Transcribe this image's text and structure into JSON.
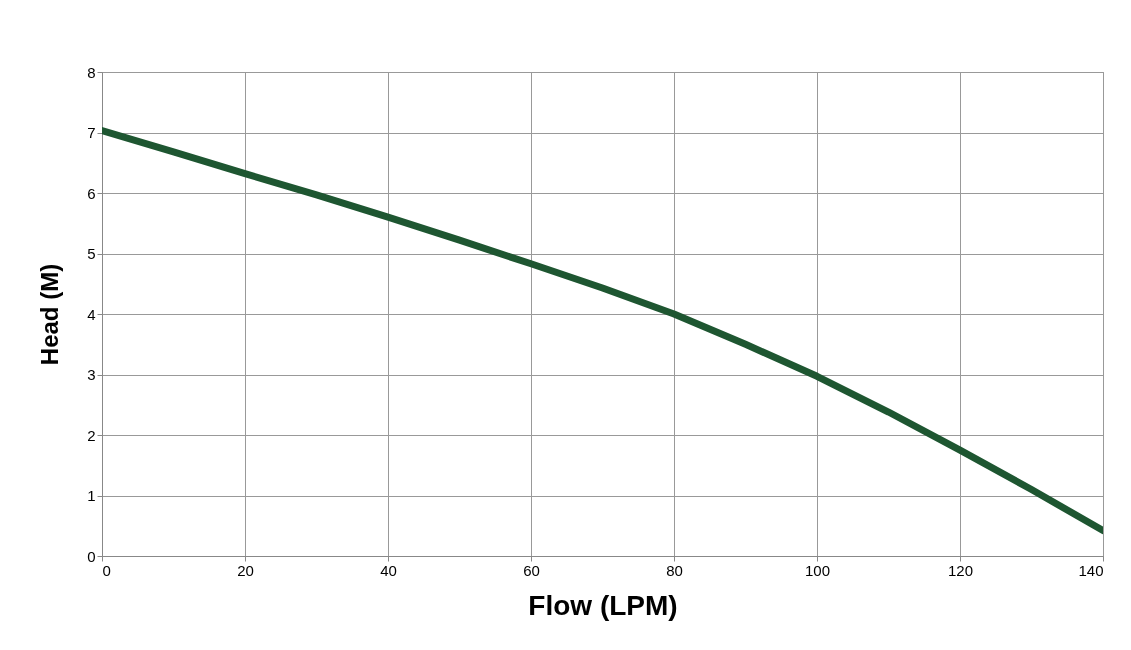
{
  "chart_data": {
    "type": "line",
    "xlabel": "Flow (LPM)",
    "ylabel": "Head (M)",
    "x": [
      0,
      10,
      20,
      30,
      40,
      50,
      60,
      70,
      80,
      90,
      100,
      110,
      120,
      130,
      140
    ],
    "series": [
      {
        "color": "#1e5631",
        "values": [
          7.03,
          6.68,
          6.32,
          5.97,
          5.6,
          5.22,
          4.83,
          4.43,
          4.0,
          3.5,
          2.97,
          2.38,
          1.75,
          1.1,
          0.42
        ]
      }
    ],
    "xlim": [
      0,
      140
    ],
    "xticks": [
      0,
      20,
      40,
      60,
      80,
      100,
      120,
      140
    ],
    "ylim": [
      0,
      8
    ],
    "yticks": [
      0,
      1,
      2,
      3,
      4,
      5,
      6,
      7,
      8
    ],
    "grid": true,
    "legend": false,
    "marker": "none",
    "line_style": "solid"
  }
}
